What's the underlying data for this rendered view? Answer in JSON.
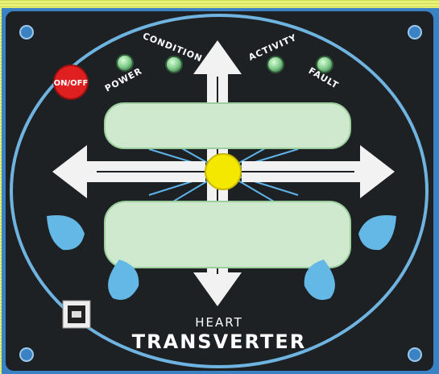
{
  "panel": {
    "button": "ON/OFF",
    "leds": [
      "POWER",
      "CONDITION",
      "ACTIVITY",
      "FAULT"
    ],
    "brand": {
      "line1": "HEART",
      "line2": "TRANSVERTER"
    }
  }
}
